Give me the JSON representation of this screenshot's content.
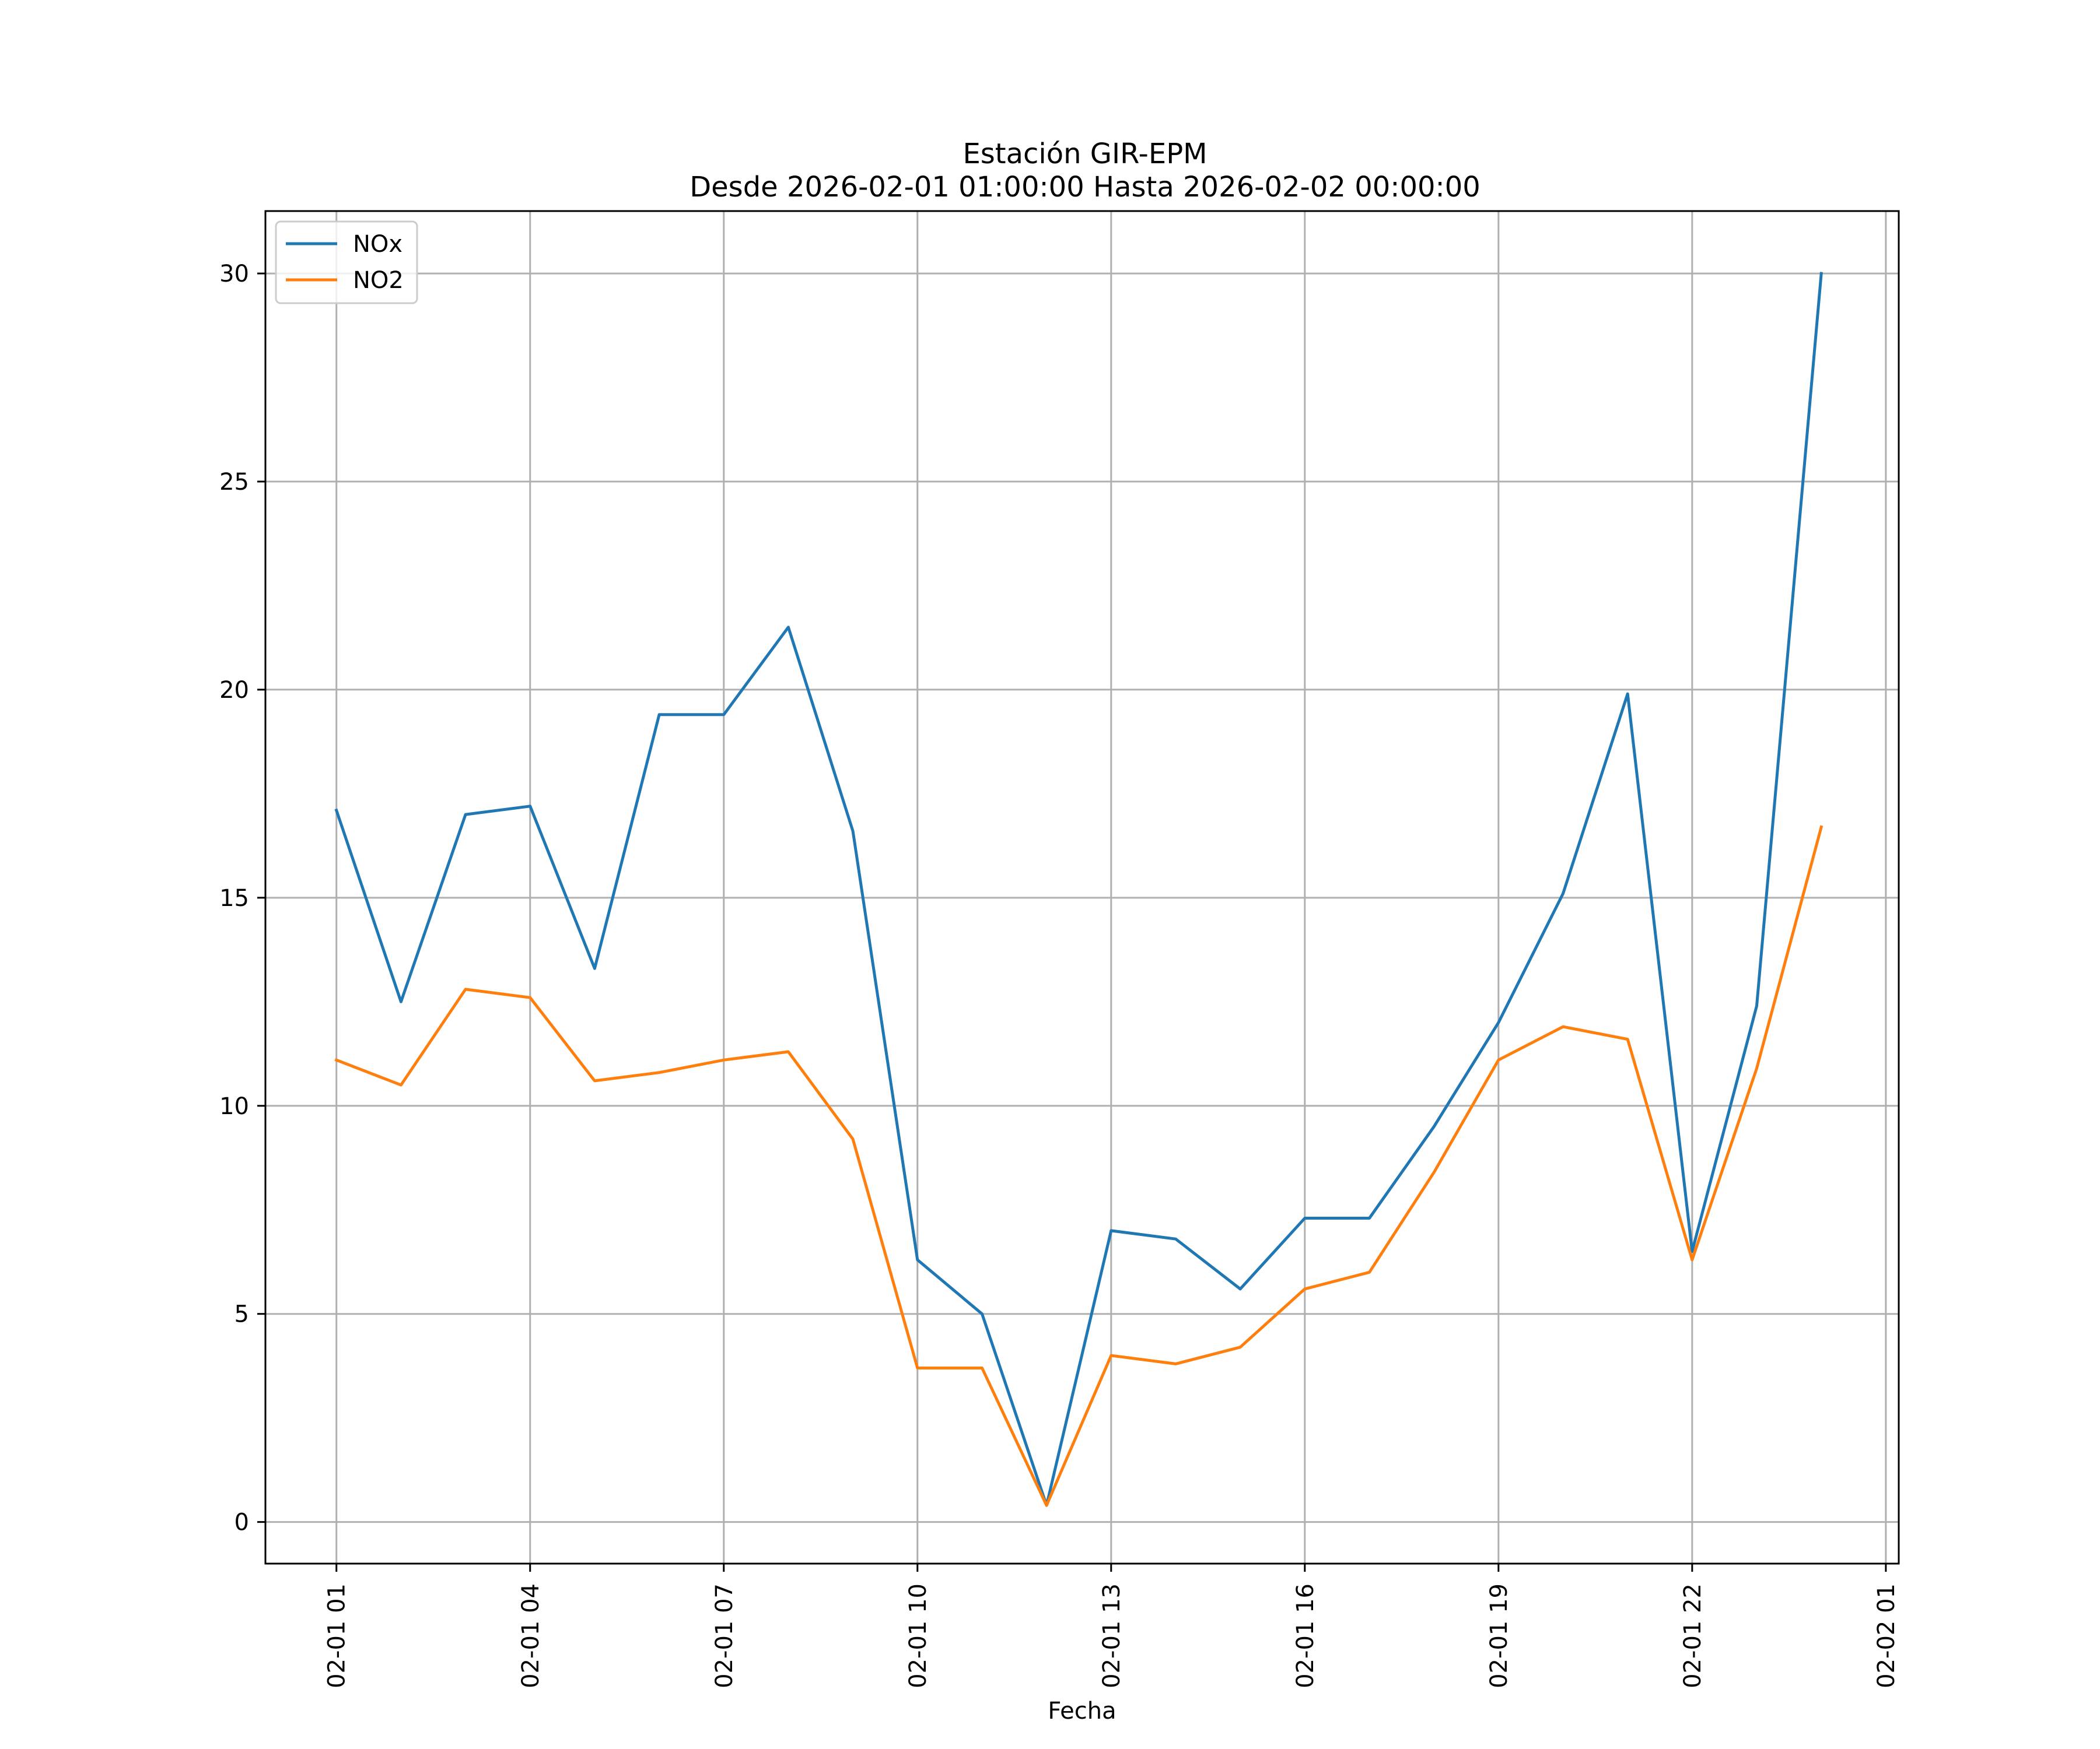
{
  "chart_data": {
    "type": "line",
    "title_line1": "Estación GIR-EPM",
    "title_line2": "Desde 2026-02-01 01:00:00 Hasta 2026-02-02 00:00:00",
    "xlabel": "Fecha",
    "ylabel": "",
    "grid": true,
    "legend_placement": "top-left",
    "x_hours": [
      1,
      2,
      3,
      4,
      5,
      6,
      7,
      8,
      9,
      10,
      11,
      12,
      13,
      14,
      15,
      16,
      17,
      18,
      19,
      20,
      21,
      22,
      23,
      24
    ],
    "xlim_hours": [
      -0.1,
      25.2
    ],
    "x_ticks": [
      {
        "hour": 1,
        "label": "02-01 01"
      },
      {
        "hour": 4,
        "label": "02-01 04"
      },
      {
        "hour": 7,
        "label": "02-01 07"
      },
      {
        "hour": 10,
        "label": "02-01 10"
      },
      {
        "hour": 13,
        "label": "02-01 13"
      },
      {
        "hour": 16,
        "label": "02-01 16"
      },
      {
        "hour": 19,
        "label": "02-01 19"
      },
      {
        "hour": 22,
        "label": "02-01 22"
      },
      {
        "hour": 25,
        "label": "02-02 01"
      }
    ],
    "ylim": [
      -1.0,
      31.5
    ],
    "y_ticks": [
      0,
      5,
      10,
      15,
      20,
      25,
      30
    ],
    "y_tick_labels": [
      "0",
      "5",
      "10",
      "15",
      "20",
      "25",
      "30"
    ],
    "series": [
      {
        "name": "NOx",
        "color": "#1f77b4",
        "values": [
          17.1,
          12.5,
          17.0,
          17.2,
          13.3,
          19.4,
          19.4,
          21.5,
          16.6,
          6.3,
          5.0,
          0.4,
          7.0,
          6.8,
          5.6,
          7.3,
          7.3,
          9.5,
          12.0,
          15.1,
          19.9,
          6.5,
          12.4,
          30.0
        ]
      },
      {
        "name": "NO2",
        "color": "#ff7f0e",
        "values": [
          11.1,
          10.5,
          12.8,
          12.6,
          10.6,
          10.8,
          11.1,
          11.3,
          9.2,
          3.7,
          3.7,
          0.4,
          4.0,
          3.8,
          4.2,
          5.6,
          6.0,
          8.4,
          11.1,
          11.9,
          11.6,
          6.3,
          10.9,
          16.7
        ]
      }
    ]
  }
}
